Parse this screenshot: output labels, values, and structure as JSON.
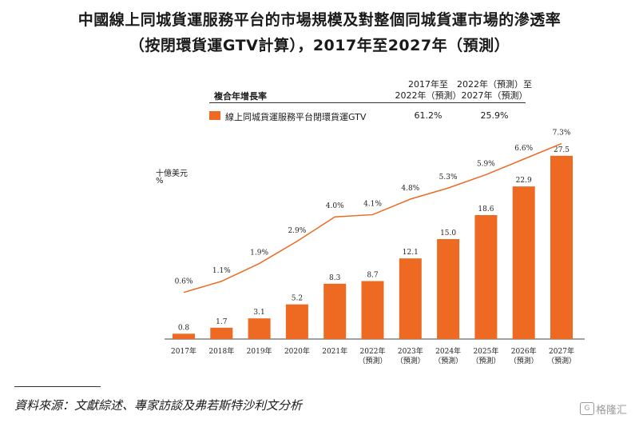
{
  "title_line1": "中國線上同城貨運服務平台的市場規模及對整個同城貨運市場的滲透率",
  "title_line2": "（按閉環貨運GTV計算），2017年至2027年（預測）",
  "table": {
    "header": "複合年增長率",
    "col1_line1": "2017年至",
    "col1_line2": "2022年（預測）",
    "col2_line1": "2022年（預測）至",
    "col2_line2": "2027年（預測）",
    "row_label": "線上同城貨運服務平台閉環貨運GTV",
    "row_val1": "61.2%",
    "row_val2": "25.9%"
  },
  "y_unit_line1": "十億美元",
  "y_unit_line2": "%",
  "footer": "資料來源：文獻綜述、專家訪談及弗若斯特沙利文分析",
  "watermark": "格隆汇",
  "watermark_logo": "G",
  "colors": {
    "bar": "#ee6a22",
    "line": "#ee6a22"
  },
  "chart_data": {
    "type": "bar",
    "categories": [
      "2017年",
      "2018年",
      "2019年",
      "2020年",
      "2021年",
      "2022年\n（預測）",
      "2023年\n（預測）",
      "2024年\n（預測）",
      "2025年\n（預測）",
      "2026年\n（預測）",
      "2027年\n（預測）"
    ],
    "values": [
      0.8,
      1.7,
      3.1,
      5.2,
      8.3,
      8.7,
      12.1,
      15.0,
      18.6,
      22.9,
      27.5
    ],
    "value_labels": [
      "0.8",
      "1.7",
      "3.1",
      "5.2",
      "8.3",
      "8.7",
      "12.1",
      "15.0",
      "18.6",
      "22.9",
      "27.5"
    ],
    "line_values": [
      0.6,
      1.1,
      1.9,
      2.9,
      4.0,
      4.1,
      4.8,
      5.3,
      5.9,
      6.6,
      7.3
    ],
    "line_labels": [
      "0.6%",
      "1.1%",
      "1.9%",
      "2.9%",
      "4.0%",
      "4.1%",
      "4.8%",
      "5.3%",
      "5.9%",
      "6.6%",
      "7.3%"
    ],
    "ylim": [
      0,
      30
    ],
    "line_ylim": [
      -1.5,
      7.5
    ],
    "legend": "線上同城貨運服務平台閉環貨運GTV"
  }
}
